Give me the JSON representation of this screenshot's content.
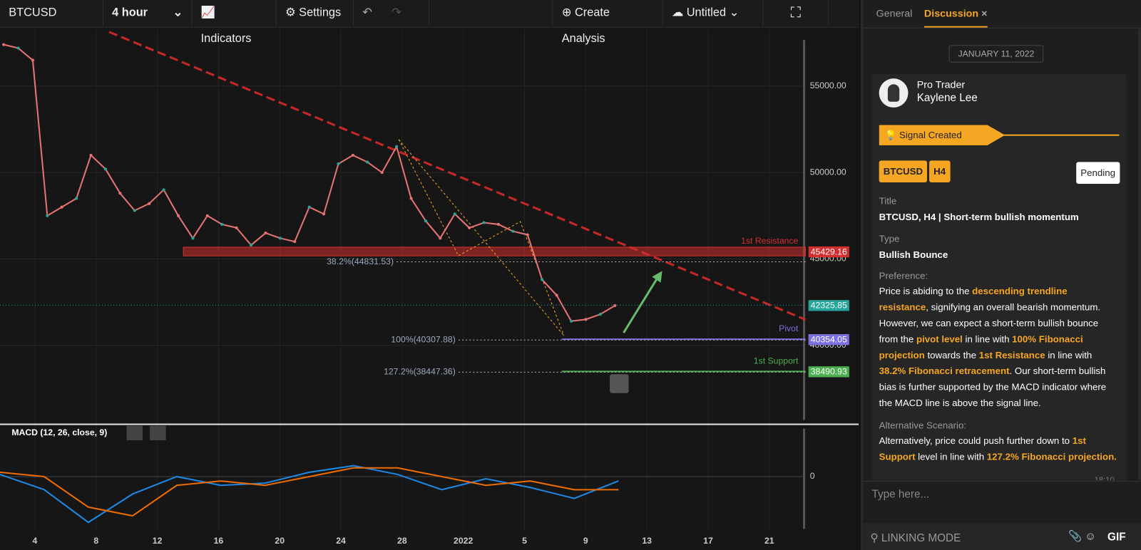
{
  "toolbar": {
    "symbol": "BTCUSD",
    "interval": "4 hour",
    "indicators": "Indicators",
    "settings": "Settings",
    "create": "Create Analysis",
    "layout": "Untitled"
  },
  "chart_data": {
    "type": "line",
    "color": "#e57373",
    "values": [
      57400,
      57200,
      56500,
      47500,
      48000,
      48500,
      51000,
      50200,
      48800,
      47800,
      48200,
      49000,
      47500,
      46200,
      47500,
      47000,
      46800,
      45800,
      46500,
      46200,
      46000,
      48000,
      47600,
      50500,
      51000,
      50600,
      50000,
      51500,
      48500,
      47200,
      46200,
      47600,
      46800,
      47100,
      47000,
      46600,
      46400,
      43800,
      42900,
      41400,
      41500,
      41800,
      42300
    ],
    "ylim": [
      35600,
      58300
    ],
    "yticks": [
      {
        "value": 55000,
        "label": "55000.00"
      },
      {
        "value": 50000,
        "label": "50000.00"
      },
      {
        "value": 45000,
        "label": "45000.00"
      },
      {
        "value": 40000,
        "label": "40000.00"
      }
    ],
    "xticks": [
      "4",
      "8",
      "12",
      "16",
      "20",
      "24",
      "28",
      "2022",
      "5",
      "9",
      "13",
      "17",
      "21"
    ],
    "last_price": 42325.85,
    "levels": [
      {
        "name": "1st Resistance",
        "value": 45429.16,
        "color": "#d32f2f",
        "kind": "zone"
      },
      {
        "name": "Pivot",
        "value": 40354.05,
        "color": "#7c6fe0",
        "kind": "line"
      },
      {
        "name": "1st Support",
        "value": 38490.93,
        "color": "#4caf50",
        "kind": "line"
      }
    ],
    "fib": [
      {
        "label": "38.2%(44831.53)",
        "value": 44831.53
      },
      {
        "label": "100%(40307.88)",
        "value": 40307.88
      },
      {
        "label": "127.2%(38447.36)",
        "value": 38447.36
      }
    ],
    "macd": {
      "label": "MACD (12, 26, close, 9)",
      "ylim": [
        -1.2,
        1.1
      ],
      "yticks": [
        0
      ],
      "macd": [
        0.05,
        -0.3,
        -1.05,
        -0.4,
        0.0,
        -0.2,
        -0.15,
        0.1,
        0.25,
        0.05,
        -0.3,
        -0.05,
        -0.25,
        -0.5,
        -0.1
      ],
      "signal": [
        0.1,
        0.0,
        -0.7,
        -0.9,
        -0.2,
        -0.1,
        -0.2,
        0.0,
        0.2,
        0.2,
        0.0,
        -0.2,
        -0.1,
        -0.3,
        -0.3
      ]
    }
  },
  "panel": {
    "tabs": [
      "General",
      "Discussion"
    ],
    "close": "×",
    "date": "JANUARY 11, 2022",
    "role": "Pro Trader",
    "author": "Kaylene Lee",
    "signal": "Signal Created",
    "tags": [
      "BTCUSD",
      "H4"
    ],
    "status": "Pending",
    "fields": [
      {
        "label": "Title",
        "value": "BTCUSD, H4 | Short-term bullish momentum"
      },
      {
        "label": "Type",
        "value": "Bullish Bounce"
      }
    ],
    "preference_label": "Preference:",
    "preference": [
      {
        "text": "Price is abiding to the ",
        "highlight": false
      },
      {
        "text": "descending trendline resistance",
        "highlight": true
      },
      {
        "text": ", signifying an overall bearish momentum. However, we can expect a short-term bullish bounce from the ",
        "highlight": false
      },
      {
        "text": "pivot level",
        "highlight": true
      },
      {
        "text": " in line with ",
        "highlight": false
      },
      {
        "text": "100% Fibonacci projection",
        "highlight": true
      },
      {
        "text": " towards the ",
        "highlight": false
      },
      {
        "text": "1st Resistance",
        "highlight": true
      },
      {
        "text": " in line with ",
        "highlight": false
      },
      {
        "text": "38.2% Fibonacci retracement",
        "highlight": true
      },
      {
        "text": ". Our short-term bullish bias is further supported by the MACD indicator where the MACD line is above the signal line.",
        "highlight": false
      }
    ],
    "alternative_label": "Alternative Scenario:",
    "alternative": [
      {
        "text": "Alternatively, price could push further down to ",
        "highlight": false
      },
      {
        "text": "1st Support",
        "highlight": true
      },
      {
        "text": " level in line with ",
        "highlight": false
      },
      {
        "text": "127.2% Fibonacci projection.",
        "highlight": true
      }
    ],
    "time": "18:10",
    "input": "Type here...",
    "linking": "LINKING MODE",
    "gif": "GIF"
  }
}
